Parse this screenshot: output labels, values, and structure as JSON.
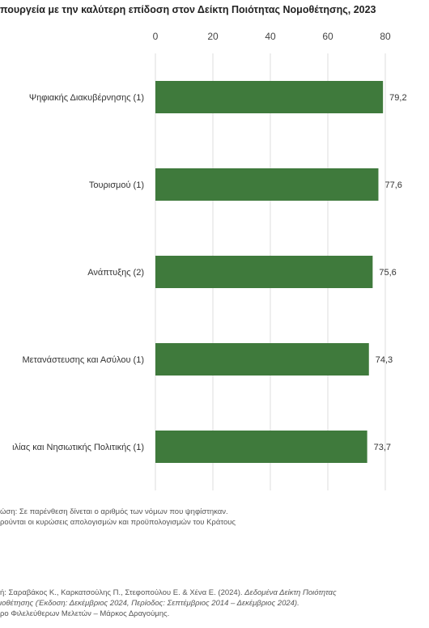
{
  "chart_data": {
    "type": "bar",
    "orientation": "horizontal",
    "title": "πουργεία με την καλύτερη επίδοση στον Δείκτη Ποιότητας Νομοθέτησης, 2023",
    "categories": [
      "Ψηφιακής Διακυβέρνησης (1)",
      "Τουρισμού (1)",
      "Ανάπτυξης (2)",
      "Μετανάστευσης και Ασύλου (1)",
      "ιλίας και Νησιωτικής Πολιτικής (1)"
    ],
    "values": [
      79.2,
      77.6,
      75.6,
      74.3,
      73.7
    ],
    "value_labels": [
      "79,2",
      "77,6",
      "75,6",
      "74,3",
      "73,7"
    ],
    "xlim": [
      0,
      80
    ],
    "xticks": [
      "0",
      "20",
      "40",
      "60",
      "80"
    ],
    "xtick_values": [
      0,
      20,
      40,
      60,
      80
    ],
    "grid": true,
    "bar_color": "#3f7a3c"
  },
  "notes": {
    "line1": "ώση: Σε παρένθεση δίνεται ο αριθμός των νόμων που ψηφίστηκαν.",
    "line2": "ρούνται οι κυρώσεις απολογισμών και προϋπολογισμών του Κράτους"
  },
  "source": {
    "line1_plain": "ή: Σαραβάκος Κ., Καρκατσούλης Π., Στεφοπούλου Ε. & Χένα Ε. (2024). ",
    "line1_italic": "Δεδομένα Δείκτη Ποιότητας",
    "line2_italic": "ιοθέτησης (Έκδοση: Δεκέμβριος 2024, Περίοδος: Σεπτέμβριος 2014 – Δεκέμβριος 2024).",
    "line3": "ρο Φιλελεύθερων Μελετών – Μάρκος Δραγούμης."
  }
}
